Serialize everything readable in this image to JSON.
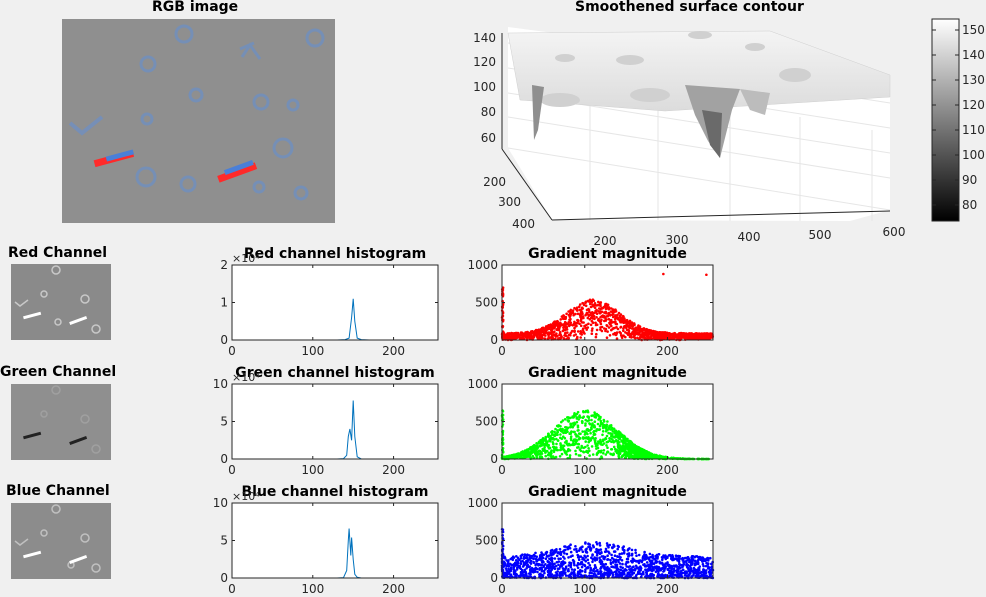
{
  "figure": {
    "rgb_title": "RGB image",
    "surface_title": "Smoothened surface contour",
    "red_channel_title": "Red Channel",
    "green_channel_title": "Green Channel",
    "blue_channel_title": "Blue Channel"
  },
  "colors": {
    "hist_line": "#0072bd",
    "red": "#ff0000",
    "green": "#00ff00",
    "blue": "#0000ff",
    "background": "#f0f0f0"
  },
  "colorbar": {
    "ticks": [
      "150",
      "140",
      "130",
      "120",
      "110",
      "100",
      "90",
      "80"
    ]
  },
  "surface": {
    "z_ticks": [
      "140",
      "120",
      "100",
      "80",
      "60"
    ],
    "y_ticks": [
      "200",
      "300",
      "400"
    ],
    "x_ticks": [
      "200",
      "300",
      "400",
      "500",
      "600"
    ]
  },
  "chart_data": [
    {
      "type": "line",
      "title": "Red channel histogram",
      "multiplier": "×10⁴",
      "xlim": [
        0,
        255
      ],
      "ylim": [
        0,
        2
      ],
      "x_ticks": [
        "0",
        "100",
        "200"
      ],
      "y_ticks": [
        "2",
        "1",
        "0"
      ],
      "series": [
        {
          "x": [
            0,
            130,
            140,
            145,
            148,
            150,
            152,
            155,
            160,
            170,
            255
          ],
          "values": [
            0,
            0,
            0.01,
            0.05,
            0.6,
            1.1,
            0.5,
            0.05,
            0.01,
            0,
            0
          ]
        }
      ]
    },
    {
      "type": "line",
      "title": "Green channel histogram",
      "multiplier": "×10⁴",
      "xlim": [
        0,
        255
      ],
      "ylim": [
        0,
        10
      ],
      "x_ticks": [
        "0",
        "100",
        "200"
      ],
      "y_ticks": [
        "10",
        "5",
        "0"
      ],
      "series": [
        {
          "x": [
            0,
            130,
            138,
            142,
            144,
            146,
            148,
            150,
            152,
            155,
            160,
            255
          ],
          "values": [
            0,
            0,
            0.05,
            0.5,
            3,
            4,
            2.5,
            7.8,
            3,
            0.3,
            0,
            0
          ]
        }
      ]
    },
    {
      "type": "line",
      "title": "Blue channel histogram",
      "multiplier": "×10⁴",
      "xlim": [
        0,
        255
      ],
      "ylim": [
        0,
        10
      ],
      "x_ticks": [
        "0",
        "100",
        "200"
      ],
      "y_ticks": [
        "10",
        "5",
        "0"
      ],
      "series": [
        {
          "x": [
            0,
            130,
            138,
            142,
            144,
            145,
            147,
            148,
            150,
            152,
            155,
            160,
            255
          ],
          "values": [
            0,
            0,
            0.05,
            1,
            5,
            6.6,
            3,
            5.4,
            2.5,
            0.5,
            0.1,
            0,
            0
          ]
        }
      ]
    },
    {
      "type": "scatter",
      "title": "Gradient magnitude",
      "xlim": [
        0,
        255
      ],
      "ylim": [
        0,
        1000
      ],
      "x_ticks": [
        "0",
        "100",
        "200"
      ],
      "y_ticks": [
        "1000",
        "500",
        "0"
      ],
      "color": "#ff0000"
    },
    {
      "type": "scatter",
      "title": "Gradient magnitude",
      "xlim": [
        0,
        255
      ],
      "ylim": [
        0,
        1000
      ],
      "x_ticks": [
        "0",
        "100",
        "200"
      ],
      "y_ticks": [
        "1000",
        "500",
        "0"
      ],
      "color": "#00ff00"
    },
    {
      "type": "scatter",
      "title": "Gradient magnitude",
      "xlim": [
        0,
        255
      ],
      "ylim": [
        0,
        1000
      ],
      "x_ticks": [
        "0",
        "100",
        "200"
      ],
      "y_ticks": [
        "1000",
        "500",
        "0"
      ],
      "color": "#0000ff"
    }
  ]
}
